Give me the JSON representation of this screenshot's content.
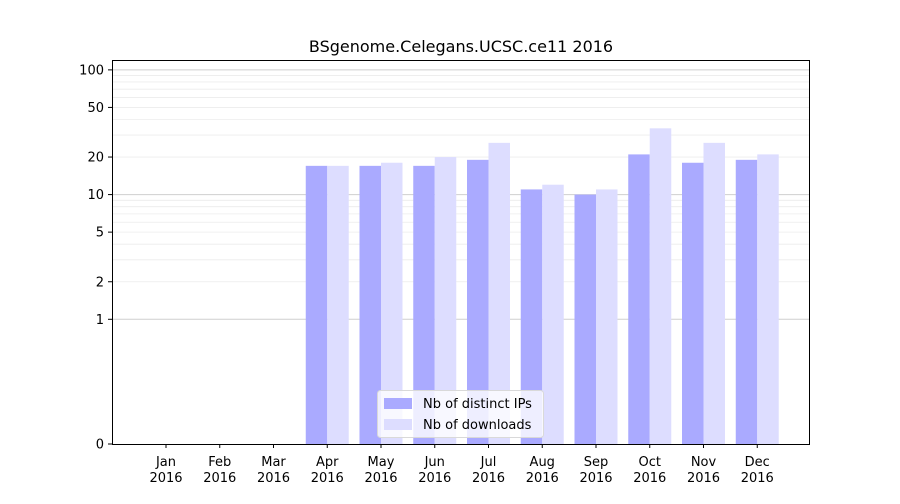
{
  "chart_data": {
    "type": "bar",
    "title": "BSgenome.Celegans.UCSC.ce11 2016",
    "xlabel": "",
    "ylabel": "",
    "y_scale": "symlog",
    "y_ticks": [
      "0",
      "1",
      "2",
      "5",
      "10",
      "20",
      "50",
      "100"
    ],
    "y_tick_values": [
      0,
      1,
      2,
      5,
      10,
      20,
      50,
      100
    ],
    "ylim": [
      0,
      120
    ],
    "grid": "horizontal, major and minor",
    "legend_position": "bottom-center",
    "categories": [
      [
        "Jan",
        "2016"
      ],
      [
        "Feb",
        "2016"
      ],
      [
        "Mar",
        "2016"
      ],
      [
        "Apr",
        "2016"
      ],
      [
        "May",
        "2016"
      ],
      [
        "Jun",
        "2016"
      ],
      [
        "Jul",
        "2016"
      ],
      [
        "Aug",
        "2016"
      ],
      [
        "Sep",
        "2016"
      ],
      [
        "Oct",
        "2016"
      ],
      [
        "Nov",
        "2016"
      ],
      [
        "Dec",
        "2016"
      ]
    ],
    "series": [
      {
        "name": "Nb of distinct IPs",
        "color": "#aaaaff",
        "values": [
          0,
          0,
          0,
          17,
          17,
          17,
          19,
          11,
          10,
          21,
          18,
          19
        ]
      },
      {
        "name": "Nb of downloads",
        "color": "#ddddff",
        "values": [
          0,
          0,
          0,
          17,
          18,
          20,
          26,
          12,
          11,
          34,
          26,
          21
        ]
      }
    ]
  }
}
